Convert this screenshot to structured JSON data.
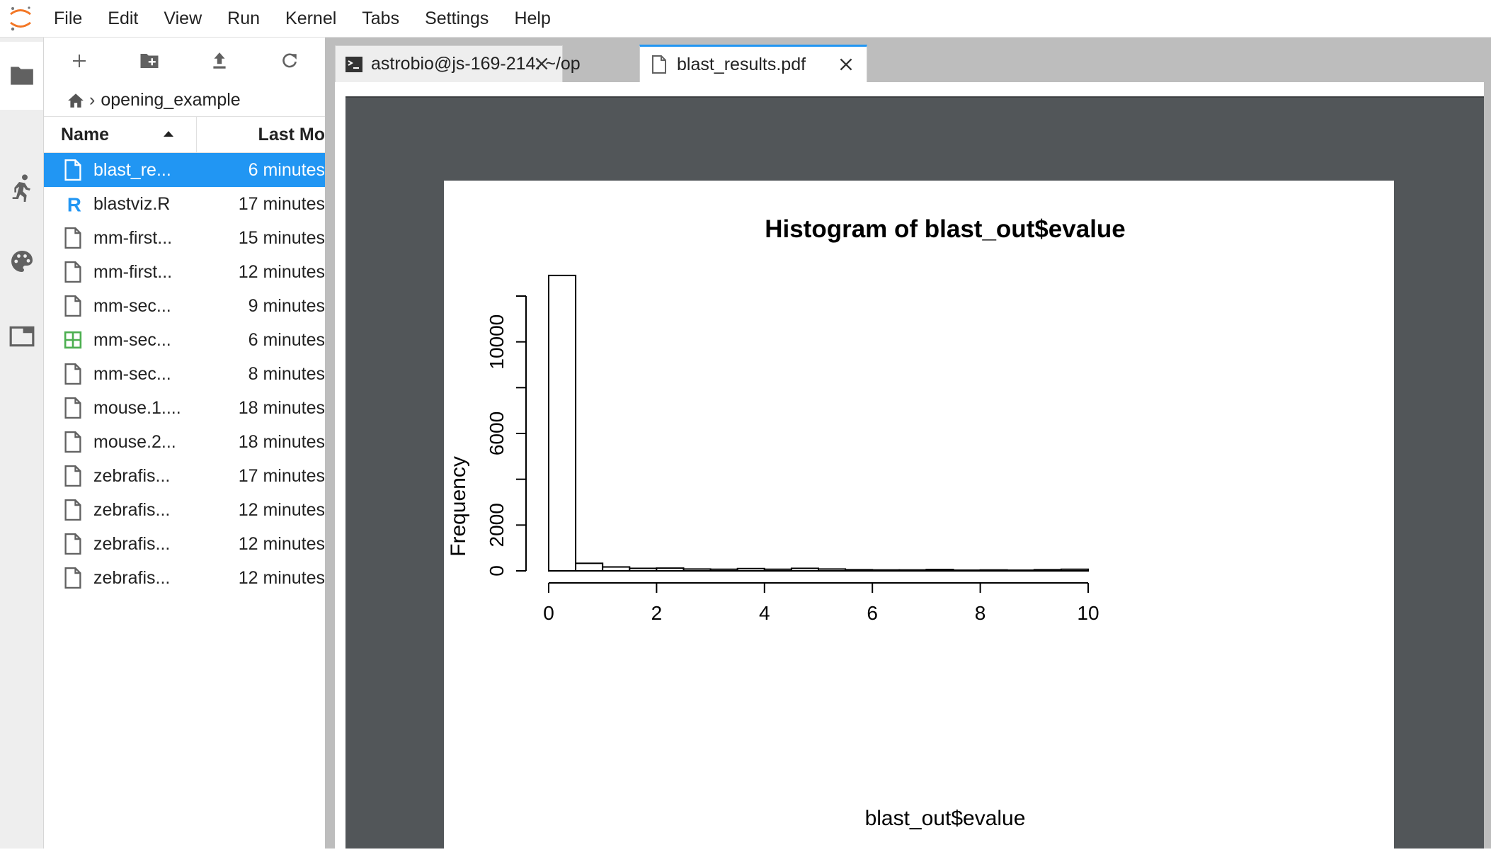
{
  "menubar": {
    "items": [
      "File",
      "Edit",
      "View",
      "Run",
      "Kernel",
      "Tabs",
      "Settings",
      "Help"
    ]
  },
  "filebrowser": {
    "breadcrumb": "opening_example",
    "header": {
      "name": "Name",
      "modified": "Last Mo"
    },
    "files": [
      {
        "name": "blast_re...",
        "modified": "6 minutes",
        "icon": "file-icon",
        "selected": true
      },
      {
        "name": "blastviz.R",
        "modified": "17 minutes",
        "icon": "r-file-icon"
      },
      {
        "name": "mm-first...",
        "modified": "15 minutes",
        "icon": "file-icon"
      },
      {
        "name": "mm-first...",
        "modified": "12 minutes",
        "icon": "file-icon"
      },
      {
        "name": "mm-sec...",
        "modified": "9 minutes",
        "icon": "file-icon"
      },
      {
        "name": "mm-sec...",
        "modified": "6 minutes",
        "icon": "spreadsheet-icon"
      },
      {
        "name": "mm-sec...",
        "modified": "8 minutes",
        "icon": "file-icon"
      },
      {
        "name": "mouse.1....",
        "modified": "18 minutes",
        "icon": "file-icon"
      },
      {
        "name": "mouse.2...",
        "modified": "18 minutes",
        "icon": "file-icon"
      },
      {
        "name": "zebrafis...",
        "modified": "17 minutes",
        "icon": "file-icon"
      },
      {
        "name": "zebrafis...",
        "modified": "12 minutes",
        "icon": "file-icon"
      },
      {
        "name": "zebrafis...",
        "modified": "12 minutes",
        "icon": "file-icon"
      },
      {
        "name": "zebrafis...",
        "modified": "12 minutes",
        "icon": "file-icon"
      }
    ]
  },
  "tabs": [
    {
      "label": "astrobio@js-169-214: ~/op",
      "icon": "terminal-icon",
      "active": false
    },
    {
      "label": "blast_results.pdf",
      "icon": "file-icon",
      "active": true
    }
  ],
  "chart_data": {
    "type": "bar",
    "title": "Histogram of blast_out$evalue",
    "xlabel": "blast_out$evalue",
    "ylabel": "Frequency",
    "bin_width": 0.5,
    "bin_starts": [
      0,
      0.5,
      1,
      1.5,
      2,
      2.5,
      3,
      3.5,
      4,
      4.5,
      5,
      5.5,
      6,
      6.5,
      7,
      7.5,
      8,
      8.5,
      9,
      9.5
    ],
    "values": [
      12900,
      330,
      170,
      110,
      120,
      80,
      70,
      100,
      70,
      110,
      80,
      50,
      40,
      40,
      60,
      30,
      40,
      30,
      50,
      70
    ],
    "xticks": [
      "0",
      "2",
      "4",
      "6",
      "8",
      "10"
    ],
    "xtick_values": [
      0,
      2,
      4,
      6,
      8,
      10
    ],
    "yticks": [
      "0",
      "2000",
      "6000",
      "10000"
    ],
    "ytick_values": [
      0,
      2000,
      6000,
      10000
    ],
    "ytick_minor": [
      4000,
      8000,
      12000
    ],
    "xlim": [
      0,
      10
    ],
    "ylim": [
      0,
      12000
    ],
    "grid": false
  }
}
